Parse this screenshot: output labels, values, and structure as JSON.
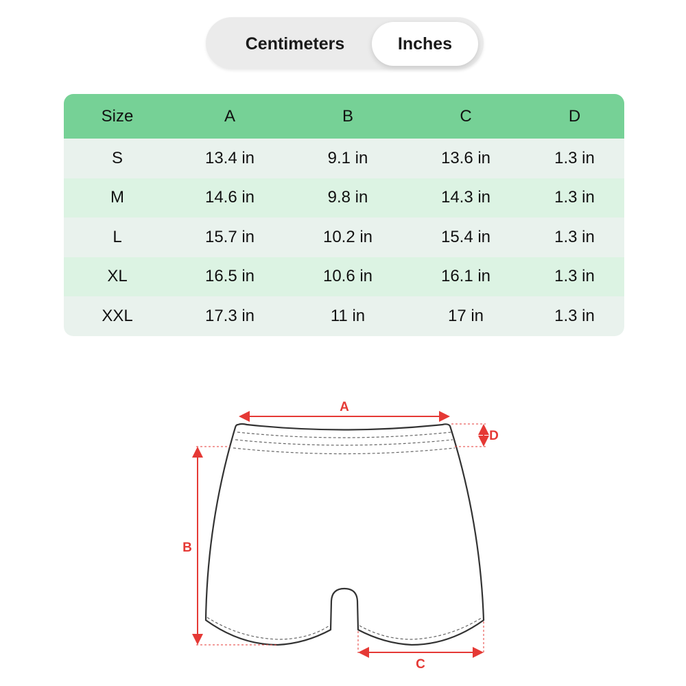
{
  "unit_toggle": {
    "options": [
      "Centimeters",
      "Inches"
    ],
    "selected": "Inches"
  },
  "table": {
    "headers": [
      "Size",
      "A",
      "B",
      "C",
      "D"
    ],
    "rows": [
      [
        "S",
        "13.4 in",
        "9.1 in",
        "13.6 in",
        "1.3 in"
      ],
      [
        "M",
        "14.6 in",
        "9.8 in",
        "14.3 in",
        "1.3 in"
      ],
      [
        "L",
        "15.7 in",
        "10.2 in",
        "15.4 in",
        "1.3 in"
      ],
      [
        "XL",
        "16.5 in",
        "10.6 in",
        "16.1 in",
        "1.3 in"
      ],
      [
        "XXL",
        "17.3 in",
        "11 in",
        "17 in",
        "1.3 in"
      ]
    ]
  },
  "diagram": {
    "labels": {
      "a": "A",
      "b": "B",
      "c": "C",
      "d": "D"
    }
  },
  "colors": {
    "header": "#76d196",
    "row_odd": "#e9f2ed",
    "row_even": "#dcf3e3",
    "measure": "#e53935"
  }
}
